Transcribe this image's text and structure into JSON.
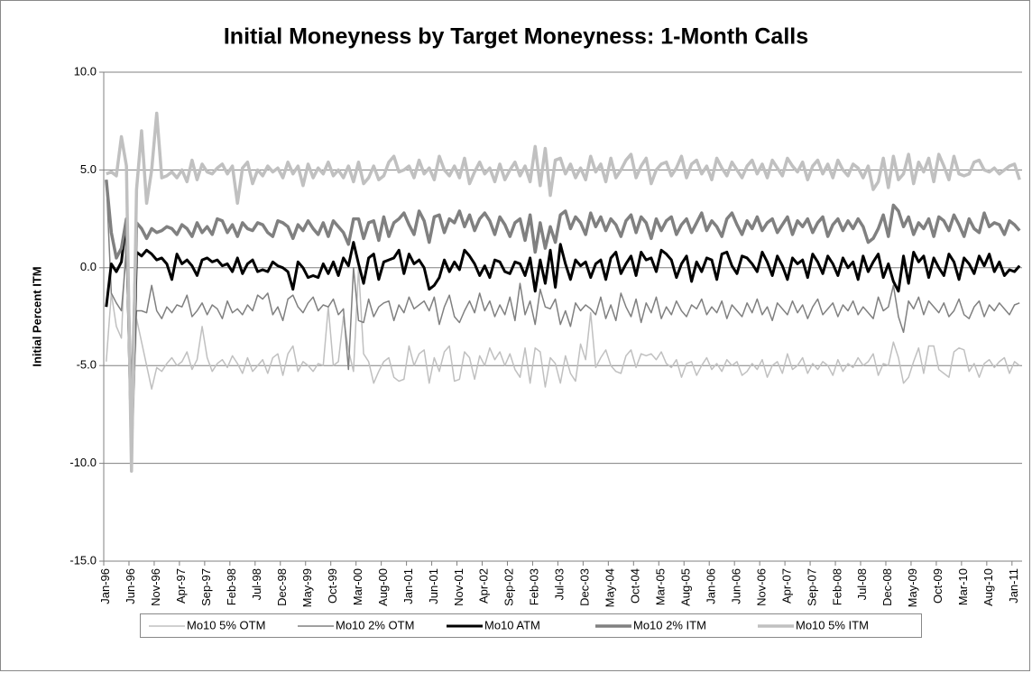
{
  "chart_data": {
    "type": "line",
    "title": "Initial Moneyness by Target Moneyness: 1-Month Calls",
    "y_label": "Initial Percent ITM",
    "ylim": [
      -15,
      10
    ],
    "yticks": [
      {
        "value": -15,
        "label": "-15.0"
      },
      {
        "value": -10,
        "label": "-10.0"
      },
      {
        "value": -5,
        "label": "-5.0"
      },
      {
        "value": 0,
        "label": "0.0"
      },
      {
        "value": 5,
        "label": "5.0"
      },
      {
        "value": 10,
        "label": "10.0"
      }
    ],
    "grid": true,
    "legend": "bottom",
    "categories": [
      "Jan-96",
      null,
      null,
      null,
      null,
      "Jun-96",
      null,
      null,
      null,
      null,
      "Nov-96",
      null,
      null,
      null,
      null,
      "Apr-97",
      null,
      null,
      null,
      null,
      "Sep-97",
      null,
      null,
      null,
      null,
      "Feb-98",
      null,
      null,
      null,
      null,
      "Jul-98",
      null,
      null,
      null,
      null,
      "Dec-98",
      null,
      null,
      null,
      null,
      "May-99",
      null,
      null,
      null,
      null,
      "Oct-99",
      null,
      null,
      null,
      null,
      "Mar-00",
      null,
      null,
      null,
      null,
      "Aug-00",
      null,
      null,
      null,
      null,
      "Jan-01",
      null,
      null,
      null,
      null,
      "Jun-01",
      null,
      null,
      null,
      null,
      "Nov-01",
      null,
      null,
      null,
      null,
      "Apr-02",
      null,
      null,
      null,
      null,
      "Sep-02",
      null,
      null,
      null,
      null,
      "Feb-03",
      null,
      null,
      null,
      null,
      "Jul-03",
      null,
      null,
      null,
      null,
      "Dec-03",
      null,
      null,
      null,
      null,
      "May-04",
      null,
      null,
      null,
      null,
      "Oct-04",
      null,
      null,
      null,
      null,
      "Mar-05",
      null,
      null,
      null,
      null,
      "Aug-05",
      null,
      null,
      null,
      null,
      "Jan-06",
      null,
      null,
      null,
      null,
      "Jun-06",
      null,
      null,
      null,
      null,
      "Nov-06",
      null,
      null,
      null,
      null,
      "Apr-07",
      null,
      null,
      null,
      null,
      "Sep-07",
      null,
      null,
      null,
      null,
      "Feb-08",
      null,
      null,
      null,
      null,
      "Jul-08",
      null,
      null,
      null,
      null,
      "Dec-08",
      null,
      null,
      null,
      null,
      "May-09",
      null,
      null,
      null,
      null,
      "Oct-09",
      null,
      null,
      null,
      null,
      "Mar-10",
      null,
      null,
      null,
      null,
      "Aug-10",
      null,
      null,
      null,
      null,
      "Jan-11",
      null
    ],
    "series": [
      {
        "name": "Mo10 5% OTM",
        "color": "#c0c0c0",
        "values": [
          -4.8,
          -1.3,
          -3.0,
          -3.6,
          2.3,
          -10.4,
          -2.6,
          -3.8,
          -5.0,
          -6.2,
          -5.1,
          -5.3,
          -4.9,
          -4.6,
          -5.0,
          -4.8,
          -4.3,
          -5.2,
          -4.7,
          -3.0,
          -4.6,
          -5.3,
          -4.9,
          -4.7,
          -5.1,
          -4.5,
          -4.9,
          -5.4,
          -4.6,
          -5.3,
          -5.0,
          -4.7,
          -5.4,
          -4.6,
          -4.4,
          -5.5,
          -4.4,
          -4.0,
          -5.3,
          -4.8,
          -5.0,
          -5.3,
          -4.9,
          -5.0,
          -2.0,
          -5.0,
          -4.8,
          -2.5,
          -4.2,
          -5.3,
          0.0,
          -4.4,
          -4.8,
          -5.9,
          -5.3,
          -4.8,
          -4.6,
          -5.6,
          -5.8,
          -5.7,
          -4.0,
          -5.0,
          -4.4,
          -4.2,
          -5.9,
          -4.6,
          -5.3,
          -4.3,
          -4.0,
          -5.8,
          -5.7,
          -4.3,
          -4.6,
          -5.7,
          -4.5,
          -5.0,
          -4.1,
          -4.7,
          -4.3,
          -5.0,
          -4.4,
          -5.2,
          -5.6,
          -4.1,
          -5.9,
          -4.1,
          -4.3,
          -6.1,
          -4.6,
          -4.9,
          -5.9,
          -4.5,
          -5.4,
          -5.8,
          -3.9,
          -4.7,
          -2.3,
          -5.1,
          -4.6,
          -4.2,
          -5.0,
          -5.3,
          -5.4,
          -4.5,
          -4.2,
          -5.1,
          -4.4,
          -4.5,
          -4.4,
          -4.7,
          -4.3,
          -4.9,
          -5.1,
          -4.7,
          -5.6,
          -4.9,
          -4.8,
          -5.5,
          -5.0,
          -4.6,
          -5.2,
          -4.9,
          -5.3,
          -4.7,
          -5.0,
          -4.8,
          -5.5,
          -5.3,
          -4.9,
          -5.2,
          -4.7,
          -5.6,
          -5.0,
          -4.8,
          -5.4,
          -4.4,
          -5.2,
          -5.0,
          -4.6,
          -5.4,
          -4.9,
          -5.2,
          -4.8,
          -5.0,
          -5.5,
          -4.7,
          -5.3,
          -4.9,
          -5.1,
          -4.6,
          -5.0,
          -4.8,
          -4.4,
          -5.5,
          -4.9,
          -5.0,
          -3.8,
          -4.6,
          -5.9,
          -5.6,
          -4.8,
          -4.1,
          -5.4,
          -4.0,
          -4.0,
          -5.2,
          -5.4,
          -5.6,
          -4.3,
          -4.1,
          -4.2,
          -5.3,
          -4.9,
          -5.6,
          -4.9,
          -4.7,
          -5.1,
          -4.8,
          -4.6,
          -5.4,
          -4.8,
          -5.0
        ]
      },
      {
        "name": "Mo10 2% OTM",
        "color": "#808080",
        "values": [
          4.5,
          -1.3,
          -1.8,
          -2.2,
          0.8,
          -8.5,
          -2.2,
          -2.2,
          -2.3,
          -0.9,
          -2.2,
          -2.6,
          -2.0,
          -2.3,
          -1.9,
          -2.0,
          -1.4,
          -2.5,
          -2.2,
          -1.8,
          -2.4,
          -1.9,
          -2.1,
          -2.6,
          -1.7,
          -2.3,
          -2.1,
          -2.4,
          -1.9,
          -2.2,
          -1.4,
          -1.6,
          -1.3,
          -2.4,
          -2.0,
          -2.7,
          -1.6,
          -1.4,
          -2.0,
          -2.3,
          -1.8,
          -1.5,
          -2.2,
          -1.9,
          -2.0,
          -1.6,
          -2.4,
          -2.1,
          -5.2,
          0.0,
          -2.7,
          -2.8,
          -1.6,
          -2.5,
          -2.0,
          -1.8,
          -1.7,
          -2.7,
          -1.9,
          -2.3,
          -1.5,
          -2.1,
          -1.9,
          -1.7,
          -2.2,
          -1.5,
          -2.9,
          -2.0,
          -1.4,
          -2.5,
          -2.8,
          -2.2,
          -1.7,
          -2.3,
          -1.3,
          -2.2,
          -1.7,
          -2.5,
          -1.9,
          -2.4,
          -1.5,
          -2.7,
          -0.8,
          -2.4,
          -1.7,
          -2.9,
          -1.1,
          -2.0,
          -2.1,
          -1.6,
          -2.9,
          -2.2,
          -3.0,
          -1.8,
          -2.2,
          -1.9,
          -2.1,
          -2.4,
          -1.5,
          -2.6,
          -1.9,
          -2.7,
          -1.3,
          -2.0,
          -2.5,
          -1.6,
          -2.8,
          -1.8,
          -2.3,
          -1.5,
          -2.6,
          -2.0,
          -2.4,
          -1.7,
          -2.2,
          -2.5,
          -1.9,
          -2.1,
          -1.6,
          -2.4,
          -2.0,
          -2.3,
          -1.7,
          -2.6,
          -1.9,
          -2.2,
          -2.5,
          -1.8,
          -2.3,
          -1.6,
          -2.4,
          -2.0,
          -2.7,
          -1.8,
          -2.1,
          -2.4,
          -1.7,
          -2.3,
          -1.9,
          -2.6,
          -2.0,
          -1.6,
          -2.4,
          -2.1,
          -1.8,
          -2.5,
          -1.9,
          -2.2,
          -1.7,
          -2.4,
          -2.0,
          -2.3,
          -2.6,
          -1.5,
          -2.2,
          -2.0,
          -0.9,
          -2.5,
          -3.3,
          -1.7,
          -2.1,
          -1.5,
          -2.4,
          -1.7,
          -2.0,
          -2.3,
          -1.8,
          -2.5,
          -2.2,
          -1.6,
          -2.4,
          -2.6,
          -2.0,
          -1.7,
          -2.5,
          -1.9,
          -2.2,
          -1.8,
          -2.1,
          -2.4,
          -1.9,
          -1.8
        ]
      },
      {
        "name": "Mo10 ATM",
        "color": "#000000",
        "values": [
          -2.0,
          0.2,
          -0.2,
          0.3,
          2.5,
          -9.5,
          0.8,
          0.6,
          0.9,
          0.7,
          0.4,
          0.5,
          0.2,
          -0.6,
          0.7,
          0.2,
          0.4,
          0.1,
          -0.4,
          0.4,
          0.5,
          0.3,
          0.4,
          0.1,
          0.2,
          -0.2,
          0.5,
          -0.3,
          0.2,
          0.4,
          -0.2,
          -0.1,
          -0.2,
          0.3,
          0.1,
          0.0,
          -0.2,
          -1.1,
          0.3,
          0.0,
          -0.5,
          -0.4,
          -0.5,
          0.2,
          -0.3,
          0.3,
          -0.4,
          0.5,
          0.1,
          1.3,
          0.2,
          -0.8,
          0.5,
          0.7,
          -0.6,
          0.3,
          0.4,
          0.5,
          0.9,
          -0.3,
          0.7,
          0.2,
          0.4,
          0.0,
          -1.1,
          -0.9,
          -0.5,
          0.4,
          -0.2,
          0.3,
          -0.1,
          0.9,
          0.6,
          0.2,
          -0.4,
          0.1,
          -0.5,
          0.4,
          0.3,
          -0.2,
          -0.3,
          0.3,
          0.2,
          -0.4,
          0.5,
          -1.2,
          0.4,
          -0.8,
          0.9,
          -1.0,
          1.2,
          0.2,
          -0.6,
          0.4,
          0.1,
          0.3,
          -0.5,
          0.2,
          0.4,
          -0.6,
          0.5,
          0.8,
          -0.3,
          0.2,
          0.6,
          -0.4,
          0.8,
          0.4,
          0.5,
          -0.2,
          0.9,
          0.7,
          0.4,
          -0.5,
          0.2,
          0.6,
          -0.7,
          0.3,
          -0.2,
          0.5,
          0.4,
          -0.6,
          0.7,
          0.8,
          0.1,
          -0.3,
          0.6,
          0.5,
          0.2,
          -0.2,
          0.8,
          0.3,
          -0.4,
          0.6,
          0.1,
          -0.6,
          0.5,
          0.2,
          0.4,
          -0.5,
          0.7,
          0.3,
          -0.3,
          0.6,
          0.2,
          -0.4,
          0.5,
          0.0,
          0.3,
          -0.6,
          0.6,
          -0.2,
          0.3,
          0.7,
          -0.5,
          0.2,
          -0.7,
          -1.2,
          0.6,
          -0.8,
          0.8,
          0.3,
          0.6,
          -0.5,
          0.5,
          0.0,
          -0.4,
          0.7,
          0.3,
          -0.6,
          0.5,
          0.2,
          -0.3,
          0.6,
          0.1,
          0.7,
          -0.2,
          0.3,
          -0.4,
          -0.1,
          -0.2,
          0.1
        ]
      },
      {
        "name": "Mo10 2% ITM",
        "color": "#808080",
        "values": [
          4.5,
          1.8,
          0.5,
          1.0,
          2.5,
          -8.0,
          2.3,
          2.0,
          1.5,
          2.0,
          1.8,
          1.9,
          2.1,
          2.0,
          1.7,
          2.2,
          2.0,
          1.6,
          2.3,
          1.8,
          2.1,
          1.7,
          2.5,
          2.4,
          1.8,
          2.2,
          1.6,
          2.3,
          2.0,
          1.9,
          2.3,
          2.2,
          1.8,
          1.6,
          2.4,
          2.3,
          2.1,
          1.5,
          2.2,
          1.9,
          2.4,
          2.0,
          1.7,
          2.3,
          1.6,
          2.4,
          2.1,
          1.8,
          1.2,
          2.5,
          2.5,
          1.5,
          2.3,
          2.4,
          1.4,
          2.6,
          1.6,
          2.3,
          2.5,
          2.8,
          2.2,
          1.7,
          2.9,
          2.4,
          1.3,
          2.6,
          2.7,
          1.8,
          2.5,
          2.3,
          2.9,
          2.1,
          2.7,
          1.9,
          2.5,
          2.8,
          2.4,
          1.7,
          2.6,
          2.2,
          1.6,
          2.3,
          2.5,
          1.4,
          2.7,
          0.8,
          2.3,
          1.0,
          2.1,
          1.3,
          2.7,
          2.9,
          2.0,
          2.6,
          2.3,
          1.7,
          2.8,
          2.1,
          2.6,
          1.9,
          2.5,
          2.2,
          1.6,
          2.4,
          2.7,
          1.8,
          2.6,
          2.3,
          1.5,
          2.5,
          1.9,
          2.4,
          2.6,
          1.7,
          2.2,
          2.5,
          1.8,
          2.3,
          2.8,
          1.9,
          2.4,
          2.1,
          1.6,
          2.5,
          2.8,
          2.2,
          1.7,
          2.4,
          2.0,
          2.6,
          1.9,
          2.3,
          2.5,
          1.8,
          2.2,
          2.6,
          1.7,
          2.4,
          2.1,
          2.5,
          1.8,
          2.3,
          2.6,
          1.6,
          2.2,
          2.5,
          1.9,
          2.4,
          2.0,
          2.5,
          2.1,
          1.3,
          1.5,
          2.0,
          2.7,
          1.6,
          3.2,
          2.9,
          2.1,
          2.6,
          1.7,
          2.3,
          2.0,
          2.5,
          1.6,
          2.6,
          2.4,
          1.9,
          2.7,
          2.2,
          1.6,
          2.5,
          2.0,
          1.8,
          2.8,
          2.1,
          2.3,
          2.2,
          1.7,
          2.4,
          2.2,
          1.9
        ]
      },
      {
        "name": "Mo10 5% ITM",
        "color": "#c0c0c0",
        "values": [
          4.8,
          4.9,
          4.7,
          6.7,
          5.2,
          -10.4,
          4.0,
          7.0,
          3.3,
          5.0,
          7.9,
          4.6,
          4.7,
          4.9,
          4.6,
          5.0,
          4.4,
          5.5,
          4.5,
          5.3,
          4.9,
          4.8,
          5.1,
          5.3,
          4.8,
          5.2,
          3.3,
          5.1,
          5.4,
          4.3,
          5.0,
          4.7,
          5.2,
          4.9,
          5.1,
          4.6,
          5.4,
          4.8,
          5.2,
          4.2,
          5.3,
          4.6,
          5.1,
          4.8,
          5.4,
          4.7,
          5.0,
          4.6,
          5.2,
          4.4,
          5.4,
          4.3,
          4.6,
          5.2,
          4.5,
          4.7,
          5.4,
          5.7,
          4.9,
          5.0,
          5.2,
          4.6,
          5.5,
          4.8,
          5.1,
          4.5,
          5.7,
          5.0,
          4.7,
          5.2,
          4.6,
          5.6,
          4.3,
          4.9,
          5.4,
          4.8,
          5.1,
          4.4,
          5.3,
          4.5,
          5.0,
          5.4,
          4.7,
          5.2,
          4.4,
          6.2,
          4.2,
          6.1,
          3.7,
          5.5,
          5.6,
          4.8,
          5.3,
          4.6,
          5.1,
          4.5,
          5.7,
          4.9,
          5.3,
          4.4,
          5.6,
          4.6,
          5.0,
          5.5,
          5.8,
          4.6,
          5.2,
          5.6,
          4.3,
          5.0,
          5.3,
          5.4,
          4.7,
          5.1,
          5.7,
          4.6,
          5.3,
          5.5,
          4.8,
          5.2,
          4.5,
          5.6,
          5.1,
          4.7,
          5.4,
          5.0,
          4.6,
          5.2,
          5.5,
          4.8,
          5.3,
          4.6,
          5.5,
          5.1,
          4.7,
          5.6,
          5.2,
          4.9,
          5.4,
          4.5,
          5.2,
          5.5,
          4.8,
          5.3,
          4.6,
          5.5,
          5.0,
          4.7,
          5.3,
          5.1,
          4.6,
          5.2,
          4.0,
          4.4,
          5.6,
          4.1,
          5.7,
          4.5,
          4.8,
          5.8,
          4.3,
          5.4,
          4.9,
          5.6,
          4.4,
          5.8,
          5.2,
          4.5,
          5.7,
          4.8,
          4.7,
          4.8,
          5.4,
          5.5,
          5.0,
          4.9,
          5.1,
          4.8,
          5.0,
          5.2,
          5.3,
          4.5
        ]
      }
    ]
  }
}
